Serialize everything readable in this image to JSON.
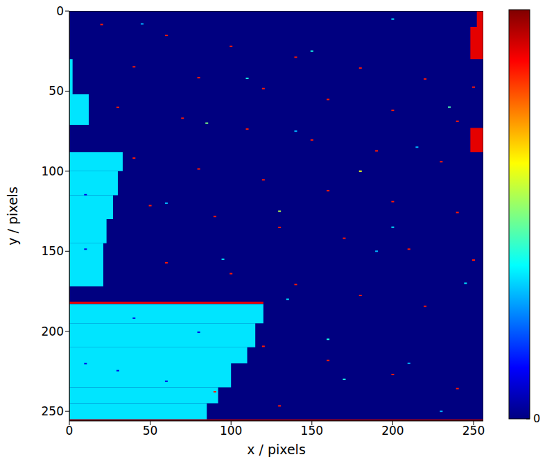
{
  "chart_data": {
    "type": "heatmap",
    "x_label": "x / pixels",
    "y_label": "y / pixels",
    "xlim": [
      0,
      256
    ],
    "ylim": [
      0,
      256
    ],
    "xticks": [
      0,
      50,
      100,
      150,
      200,
      250
    ],
    "yticks": [
      0,
      50,
      100,
      150,
      200,
      250
    ],
    "background_value": 0,
    "regions": [
      {
        "x": [
          0,
          2
        ],
        "y": [
          30,
          52
        ],
        "value": 0.35
      },
      {
        "x": [
          0,
          12
        ],
        "y": [
          52,
          71
        ],
        "value": 0.35
      },
      {
        "x": [
          0,
          33
        ],
        "y": [
          88,
          100
        ],
        "value": 0.35
      },
      {
        "x": [
          0,
          30
        ],
        "y": [
          100,
          115
        ],
        "value": 0.35
      },
      {
        "x": [
          0,
          27
        ],
        "y": [
          115,
          130
        ],
        "value": 0.35
      },
      {
        "x": [
          0,
          23
        ],
        "y": [
          130,
          145
        ],
        "value": 0.35
      },
      {
        "x": [
          0,
          21
        ],
        "y": [
          145,
          172
        ],
        "value": 0.35
      },
      {
        "x": [
          0,
          120
        ],
        "y": [
          183,
          195
        ],
        "value": 0.35
      },
      {
        "x": [
          0,
          115
        ],
        "y": [
          195,
          210
        ],
        "value": 0.35
      },
      {
        "x": [
          0,
          110
        ],
        "y": [
          210,
          220
        ],
        "value": 0.35
      },
      {
        "x": [
          0,
          100
        ],
        "y": [
          220,
          235
        ],
        "value": 0.35
      },
      {
        "x": [
          0,
          92
        ],
        "y": [
          235,
          245
        ],
        "value": 0.35
      },
      {
        "x": [
          0,
          85
        ],
        "y": [
          245,
          255
        ],
        "value": 0.35
      },
      {
        "x": [
          252,
          256
        ],
        "y": [
          0,
          10
        ],
        "value": 0.9
      },
      {
        "x": [
          248,
          256
        ],
        "y": [
          10,
          30
        ],
        "value": 0.9
      },
      {
        "x": [
          248,
          256
        ],
        "y": [
          73,
          88
        ],
        "value": 0.9
      },
      {
        "x": [
          0,
          120
        ],
        "y": [
          181.5,
          182.8
        ],
        "value": 0.9
      },
      {
        "x": [
          0,
          256
        ],
        "y": [
          255,
          256
        ],
        "value": 0.95
      }
    ],
    "points": [
      {
        "x": 20,
        "y": 8.4,
        "value": 0.85
      },
      {
        "x": 60,
        "y": 15.2,
        "value": 0.85
      },
      {
        "x": 100,
        "y": 22,
        "value": 0.85
      },
      {
        "x": 140,
        "y": 28.8,
        "value": 0.85
      },
      {
        "x": 180,
        "y": 35.6,
        "value": 0.85
      },
      {
        "x": 220,
        "y": 42.4,
        "value": 0.85
      },
      {
        "x": 250,
        "y": 47.5,
        "value": 0.85
      },
      {
        "x": 40,
        "y": 34.8,
        "value": 0.85
      },
      {
        "x": 80,
        "y": 41.6,
        "value": 0.85
      },
      {
        "x": 120,
        "y": 48.4,
        "value": 0.85
      },
      {
        "x": 160,
        "y": 55.2,
        "value": 0.85
      },
      {
        "x": 200,
        "y": 62,
        "value": 0.85
      },
      {
        "x": 240,
        "y": 68.8,
        "value": 0.85
      },
      {
        "x": 30,
        "y": 60.1,
        "value": 0.85
      },
      {
        "x": 70,
        "y": 66.9,
        "value": 0.85
      },
      {
        "x": 110,
        "y": 73.7,
        "value": 0.85
      },
      {
        "x": 150,
        "y": 80.5,
        "value": 0.85
      },
      {
        "x": 190,
        "y": 87.3,
        "value": 0.85
      },
      {
        "x": 230,
        "y": 94.1,
        "value": 0.85
      },
      {
        "x": 40,
        "y": 91.8,
        "value": 0.85
      },
      {
        "x": 80,
        "y": 98.6,
        "value": 0.85
      },
      {
        "x": 120,
        "y": 105.4,
        "value": 0.85
      },
      {
        "x": 160,
        "y": 112.2,
        "value": 0.85
      },
      {
        "x": 200,
        "y": 119,
        "value": 0.85
      },
      {
        "x": 240,
        "y": 125.8,
        "value": 0.85
      },
      {
        "x": 10,
        "y": 114.7,
        "value": 0.1
      },
      {
        "x": 50,
        "y": 121.5,
        "value": 0.85
      },
      {
        "x": 90,
        "y": 128.3,
        "value": 0.85
      },
      {
        "x": 130,
        "y": 135.1,
        "value": 0.85
      },
      {
        "x": 170,
        "y": 141.9,
        "value": 0.85
      },
      {
        "x": 210,
        "y": 148.7,
        "value": 0.85
      },
      {
        "x": 250,
        "y": 155.5,
        "value": 0.85
      },
      {
        "x": 10,
        "y": 148.7,
        "value": 0.1
      },
      {
        "x": 60,
        "y": 157.2,
        "value": 0.85
      },
      {
        "x": 100,
        "y": 164,
        "value": 0.85
      },
      {
        "x": 140,
        "y": 170.8,
        "value": 0.85
      },
      {
        "x": 180,
        "y": 177.6,
        "value": 0.85
      },
      {
        "x": 220,
        "y": 184.4,
        "value": 0.85
      },
      {
        "x": 40,
        "y": 191.8,
        "value": 0.1
      },
      {
        "x": 80,
        "y": 200.6,
        "value": 0.1
      },
      {
        "x": 120,
        "y": 209.4,
        "value": 0.85
      },
      {
        "x": 160,
        "y": 218.2,
        "value": 0.85
      },
      {
        "x": 200,
        "y": 227,
        "value": 0.85
      },
      {
        "x": 240,
        "y": 235.8,
        "value": 0.85
      },
      {
        "x": 10,
        "y": 220.2,
        "value": 0.1
      },
      {
        "x": 30,
        "y": 224.6,
        "value": 0.1
      },
      {
        "x": 60,
        "y": 231.2,
        "value": 0.1
      },
      {
        "x": 90,
        "y": 237.8,
        "value": 0.85
      },
      {
        "x": 130,
        "y": 246.6,
        "value": 0.85
      },
      {
        "x": 110,
        "y": 42,
        "value": 0.4
      },
      {
        "x": 150,
        "y": 25,
        "value": 0.4
      },
      {
        "x": 200,
        "y": 5,
        "value": 0.35
      },
      {
        "x": 45,
        "y": 8,
        "value": 0.3
      },
      {
        "x": 60,
        "y": 120,
        "value": 0.3
      },
      {
        "x": 95,
        "y": 155,
        "value": 0.35
      },
      {
        "x": 180,
        "y": 100,
        "value": 0.6
      },
      {
        "x": 215,
        "y": 85,
        "value": 0.3
      },
      {
        "x": 135,
        "y": 180,
        "value": 0.35
      },
      {
        "x": 160,
        "y": 205,
        "value": 0.4
      },
      {
        "x": 210,
        "y": 220,
        "value": 0.3
      },
      {
        "x": 245,
        "y": 170,
        "value": 0.35
      },
      {
        "x": 235,
        "y": 60,
        "value": 0.45
      },
      {
        "x": 130,
        "y": 125,
        "value": 0.55
      },
      {
        "x": 190,
        "y": 150,
        "value": 0.3
      },
      {
        "x": 170,
        "y": 230,
        "value": 0.4
      },
      {
        "x": 230,
        "y": 250,
        "value": 0.3
      },
      {
        "x": 140,
        "y": 75,
        "value": 0.3
      },
      {
        "x": 85,
        "y": 70,
        "value": 0.5
      },
      {
        "x": 200,
        "y": 135,
        "value": 0.35
      }
    ],
    "colorbar": {
      "range": [
        0,
        1
      ],
      "ticks": [
        0
      ]
    }
  }
}
